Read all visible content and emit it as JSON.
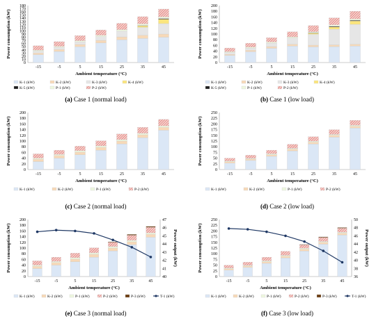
{
  "figure": {
    "panels": [
      {
        "id": "a",
        "letter": "(a)",
        "caption": "Case 1 (normal load)"
      },
      {
        "id": "b",
        "letter": "(b)",
        "caption": "Case 1 (low load)"
      },
      {
        "id": "c",
        "letter": "(c)",
        "caption": "Case 2 (normal load)"
      },
      {
        "id": "d",
        "letter": "(d)",
        "caption": "Case 2 (low load)"
      },
      {
        "id": "e",
        "letter": "(e)",
        "caption": "Case 3 (normal load)"
      },
      {
        "id": "f",
        "letter": "(f)",
        "caption": "Case 3 (low load)"
      }
    ]
  },
  "colors": {
    "K-1": "#dbe7f6",
    "K-2": "#f7d9b8",
    "K-3": "#e6e6e6",
    "K-4": "#fbe57d",
    "K-5": "#1f1f1f",
    "P-1": "#eef7df",
    "P-2": "#d9534f",
    "P-3": "#6b3d12",
    "T-1": "#1f3864"
  },
  "chart_data": [
    {
      "panel": "a",
      "type": "bar",
      "categories": [
        "-15",
        "-5",
        "5",
        "15",
        "25",
        "35",
        "45"
      ],
      "xlabel": "Ambient temperature (°C)",
      "ylabel": "Power consumption (kW)",
      "ylim": [
        0,
        180
      ],
      "yticks": [
        0,
        10,
        20,
        30,
        40,
        50,
        60,
        70,
        80,
        90,
        100,
        110,
        120,
        130,
        140,
        150,
        160,
        170,
        180
      ],
      "series": [
        {
          "name": "K-1 (kW)",
          "values": [
            25,
            35,
            50,
            62,
            72,
            76,
            80
          ]
        },
        {
          "name": "K-2 (kW)",
          "values": [
            5,
            6,
            7,
            8,
            9,
            10,
            10
          ]
        },
        {
          "name": "K-3 (kW)",
          "values": [
            6,
            7,
            8,
            12,
            18,
            25,
            33
          ]
        },
        {
          "name": "K-4 (kW)",
          "values": [
            0,
            0,
            0,
            0,
            0,
            5,
            14
          ]
        },
        {
          "name": "K-5 (kW)",
          "values": [
            0,
            0,
            0,
            0,
            0,
            1,
            2
          ]
        },
        {
          "name": "P-1 (kW)",
          "values": [
            3,
            3,
            4,
            4,
            5,
            5,
            5
          ]
        },
        {
          "name": "P-2 (kW)",
          "values": [
            14,
            15,
            16,
            17,
            20,
            23,
            25
          ]
        }
      ],
      "legend": [
        "K-1 (kW)",
        "K-2 (kW)",
        "K-3 (kW)",
        "K-4 (kW)",
        "K-5 (kW)",
        "P-1 (kW)",
        "P-2 (kW)"
      ]
    },
    {
      "panel": "b",
      "type": "bar",
      "categories": [
        "-15",
        "-5",
        "5",
        "15",
        "25",
        "35",
        "45"
      ],
      "xlabel": "Ambient temperature (°C)",
      "ylabel": "Power consumption (kW)",
      "ylim": [
        0,
        200
      ],
      "yticks": [
        0,
        20,
        40,
        60,
        80,
        100,
        120,
        140,
        160,
        180,
        200
      ],
      "series": [
        {
          "name": "K-1 (kW)",
          "values": [
            25,
            38,
            50,
            58,
            55,
            56,
            58
          ]
        },
        {
          "name": "K-2 (kW)",
          "values": [
            4,
            5,
            6,
            6,
            6,
            6,
            6
          ]
        },
        {
          "name": "K-3 (kW)",
          "values": [
            6,
            8,
            12,
            22,
            38,
            55,
            70
          ]
        },
        {
          "name": "K-4 (kW)",
          "values": [
            0,
            0,
            0,
            0,
            4,
            8,
            12
          ]
        },
        {
          "name": "K-5 (kW)",
          "values": [
            0,
            0,
            0,
            0,
            1,
            2,
            2
          ]
        },
        {
          "name": "P-1 (kW)",
          "values": [
            3,
            3,
            4,
            4,
            4,
            5,
            5
          ]
        },
        {
          "name": "P-2 (kW)",
          "values": [
            13,
            14,
            15,
            18,
            22,
            25,
            27
          ]
        }
      ],
      "legend": [
        "K-1 (kW)",
        "K-2 (kW)",
        "K-3 (kW)",
        "K-4 (kW)",
        "K-5 (kW)",
        "P-1 (kW)",
        "P-2 (kW)"
      ]
    },
    {
      "panel": "c",
      "type": "bar",
      "categories": [
        "-15",
        "-5",
        "5",
        "15",
        "25",
        "35",
        "45"
      ],
      "xlabel": "Ambient temperature (°C)",
      "ylabel": "Power consumption (kW)",
      "ylim": [
        0,
        200
      ],
      "yticks": [
        0,
        20,
        40,
        60,
        80,
        100,
        120,
        140,
        160,
        180,
        200
      ],
      "series": [
        {
          "name": "K-1 (kW)",
          "values": [
            28,
            40,
            52,
            68,
            90,
            112,
            138
          ]
        },
        {
          "name": "K-2 (kW)",
          "values": [
            8,
            9,
            9,
            10,
            10,
            10,
            10
          ]
        },
        {
          "name": "P-1 (kW)",
          "values": [
            4,
            4,
            5,
            5,
            5,
            5,
            5
          ]
        },
        {
          "name": "P-2 (kW)",
          "values": [
            15,
            15,
            16,
            18,
            20,
            21,
            23
          ]
        }
      ],
      "legend": [
        "K-1 (kW)",
        "K-2 (kW)",
        "P-1 (kW)",
        "P-2 (kW)"
      ]
    },
    {
      "panel": "d",
      "type": "bar",
      "categories": [
        "-15",
        "-5",
        "5",
        "15",
        "25",
        "35",
        "45"
      ],
      "xlabel": "Ambient temperature (°C)",
      "ylabel": "Power consumption (kW)",
      "ylim": [
        0,
        250
      ],
      "yticks": [
        0,
        25,
        50,
        75,
        100,
        125,
        150,
        175,
        200,
        225,
        250
      ],
      "series": [
        {
          "name": "K-1 (kW)",
          "values": [
            28,
            40,
            58,
            82,
            112,
            142,
            182
          ]
        },
        {
          "name": "K-2 (kW)",
          "values": [
            6,
            6,
            7,
            7,
            8,
            8,
            8
          ]
        },
        {
          "name": "P-1 (kW)",
          "values": [
            3,
            3,
            4,
            4,
            4,
            4,
            4
          ]
        },
        {
          "name": "P-2 (kW)",
          "values": [
            13,
            14,
            16,
            18,
            20,
            21,
            22
          ]
        }
      ],
      "legend": [
        "K-1 (kW)",
        "K-2 (kW)",
        "P-1 (kW)",
        "P-2 (kW)"
      ]
    },
    {
      "panel": "e",
      "type": "bar",
      "categories": [
        "-15",
        "-5",
        "5",
        "15",
        "25",
        "35",
        "45"
      ],
      "xlabel": "Ambient temperature (°C)",
      "ylabel": "Power consumption (kW)",
      "ylabel2": "Power output (kW)",
      "ylim": [
        0,
        200
      ],
      "yticks": [
        0,
        20,
        40,
        60,
        80,
        100,
        120,
        140,
        160,
        180,
        200
      ],
      "ylim2": [
        40,
        47
      ],
      "yticks2": [
        40,
        41,
        42,
        43,
        44,
        45,
        46,
        47
      ],
      "series": [
        {
          "name": "K-1 (kW)",
          "values": [
            28,
            40,
            52,
            68,
            90,
            112,
            138
          ]
        },
        {
          "name": "K-2 (kW)",
          "values": [
            8,
            9,
            9,
            10,
            10,
            10,
            10
          ]
        },
        {
          "name": "P-1 (kW)",
          "values": [
            4,
            4,
            5,
            5,
            5,
            5,
            5
          ]
        },
        {
          "name": "P-2 (kW)",
          "values": [
            15,
            15,
            16,
            18,
            15,
            18,
            20
          ]
        },
        {
          "name": "P-3 (kW)",
          "values": [
            0,
            0,
            0,
            0,
            2,
            3,
            3
          ]
        }
      ],
      "line": {
        "name": "T-1 (kW)",
        "values": [
          45.5,
          45.7,
          45.6,
          45.3,
          44.5,
          43.6,
          42.4
        ]
      },
      "legend": [
        "K-1 (kW)",
        "K-2 (kW)",
        "P-1 (kW)",
        "P-2 (kW)",
        "P-3 (kW)",
        "T-1 (kW)"
      ]
    },
    {
      "panel": "f",
      "type": "bar",
      "categories": [
        "-15",
        "-5",
        "5",
        "15",
        "25",
        "35",
        "45"
      ],
      "xlabel": "Ambient temperature (°C)",
      "ylabel": "Power consumption (kW)",
      "ylabel2": "Power output (kW)",
      "ylim": [
        0,
        250
      ],
      "yticks": [
        0,
        25,
        50,
        75,
        100,
        125,
        150,
        175,
        200,
        225,
        250
      ],
      "ylim2": [
        36,
        50
      ],
      "yticks2": [
        36,
        38,
        40,
        42,
        44,
        46,
        48,
        50
      ],
      "series": [
        {
          "name": "K-1 (kW)",
          "values": [
            28,
            40,
            58,
            82,
            112,
            142,
            182
          ]
        },
        {
          "name": "K-2 (kW)",
          "values": [
            6,
            6,
            7,
            7,
            8,
            8,
            8
          ]
        },
        {
          "name": "P-1 (kW)",
          "values": [
            3,
            3,
            4,
            4,
            4,
            4,
            4
          ]
        },
        {
          "name": "P-2 (kW)",
          "values": [
            13,
            14,
            16,
            18,
            15,
            17,
            18
          ]
        },
        {
          "name": "P-3 (kW)",
          "values": [
            0,
            0,
            0,
            0,
            2,
            3,
            3
          ]
        }
      ],
      "line": {
        "name": "T-1 (kW)",
        "values": [
          47.8,
          47.6,
          47.0,
          46.0,
          44.6,
          42.3,
          39.5
        ]
      },
      "legend": [
        "K-1 (kW)",
        "K-2 (kW)",
        "P-1 (kW)",
        "P-2 (kW)",
        "P-3 (kW)",
        "T-1 (kW)"
      ]
    }
  ]
}
